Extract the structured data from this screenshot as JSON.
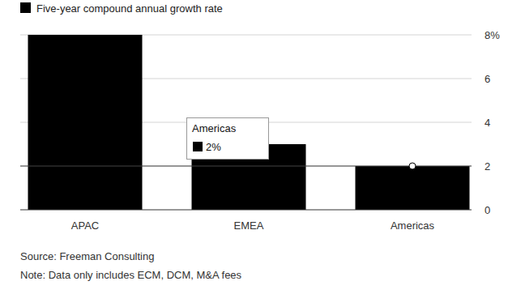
{
  "chart_data": {
    "type": "bar",
    "categories": [
      "APAC",
      "EMEA",
      "Americas"
    ],
    "series": [
      {
        "name": "Five-year compound annual growth rate",
        "color": "#000000",
        "values": [
          8,
          3,
          2
        ]
      }
    ],
    "ylim": [
      0,
      8
    ],
    "yticks": [
      0,
      2,
      4,
      6,
      {
        "value": 8,
        "label": "8%"
      }
    ],
    "grid": true,
    "legend": "top-left",
    "tooltip": {
      "category": "Americas",
      "value": 2,
      "value_label": "2%"
    },
    "source": "Source: Freeman Consulting",
    "note": "Note: Data only includes ECM, DCM, M&A fees"
  }
}
